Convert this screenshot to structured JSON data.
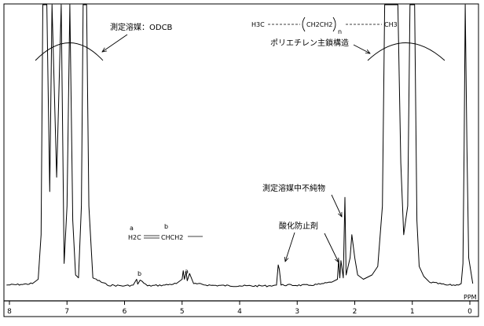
{
  "chart_data": {
    "type": "line",
    "title": "",
    "xlabel": "PPM",
    "ylabel": "",
    "x_reversed": true,
    "xlim": [
      8.1,
      -0.1
    ],
    "ylim": [
      0,
      1
    ],
    "x_ticks": [
      "8",
      "7",
      "6",
      "5",
      "4",
      "3",
      "2",
      "1",
      "0"
    ],
    "series": [
      {
        "values": [
          [
            8.05,
            0.025
          ],
          [
            7.8,
            0.027
          ],
          [
            7.6,
            0.03
          ],
          [
            7.5,
            0.045
          ],
          [
            7.45,
            0.2
          ],
          [
            7.42,
            1.0
          ],
          [
            7.35,
            1.0
          ],
          [
            7.3,
            0.35
          ],
          [
            7.26,
            1.0
          ],
          [
            7.18,
            0.4
          ],
          [
            7.1,
            1.0
          ],
          [
            7.05,
            0.1
          ],
          [
            7.0,
            0.3
          ],
          [
            6.95,
            1.0
          ],
          [
            6.9,
            0.25
          ],
          [
            6.85,
            0.06
          ],
          [
            6.8,
            0.05
          ],
          [
            6.75,
            0.3
          ],
          [
            6.72,
            1.0
          ],
          [
            6.66,
            1.0
          ],
          [
            6.62,
            0.3
          ],
          [
            6.55,
            0.05
          ],
          [
            6.3,
            0.025
          ],
          [
            6.0,
            0.022
          ],
          [
            5.85,
            0.025
          ],
          [
            5.79,
            0.045
          ],
          [
            5.77,
            0.028
          ],
          [
            5.73,
            0.042
          ],
          [
            5.6,
            0.022
          ],
          [
            5.3,
            0.025
          ],
          [
            5.1,
            0.03
          ],
          [
            5.0,
            0.045
          ],
          [
            4.98,
            0.075
          ],
          [
            4.96,
            0.045
          ],
          [
            4.93,
            0.07
          ],
          [
            4.91,
            0.04
          ],
          [
            4.87,
            0.065
          ],
          [
            4.8,
            0.03
          ],
          [
            4.5,
            0.024
          ],
          [
            4.0,
            0.022
          ],
          [
            3.5,
            0.022
          ],
          [
            3.36,
            0.025
          ],
          [
            3.33,
            0.095
          ],
          [
            3.31,
            0.08
          ],
          [
            3.28,
            0.025
          ],
          [
            2.8,
            0.024
          ],
          [
            2.6,
            0.028
          ],
          [
            2.4,
            0.035
          ],
          [
            2.3,
            0.045
          ],
          [
            2.28,
            0.115
          ],
          [
            2.26,
            0.05
          ],
          [
            2.24,
            0.11
          ],
          [
            2.2,
            0.05
          ],
          [
            2.17,
            0.33
          ],
          [
            2.15,
            0.06
          ],
          [
            2.08,
            0.12
          ],
          [
            2.05,
            0.2
          ],
          [
            2.0,
            0.12
          ],
          [
            1.95,
            0.06
          ],
          [
            1.85,
            0.045
          ],
          [
            1.7,
            0.06
          ],
          [
            1.6,
            0.09
          ],
          [
            1.52,
            0.3
          ],
          [
            1.48,
            1.0
          ],
          [
            1.25,
            1.0
          ],
          [
            1.2,
            0.45
          ],
          [
            1.15,
            0.2
          ],
          [
            1.08,
            0.3
          ],
          [
            1.04,
            1.0
          ],
          [
            0.96,
            1.0
          ],
          [
            0.92,
            0.25
          ],
          [
            0.88,
            0.09
          ],
          [
            0.8,
            0.055
          ],
          [
            0.7,
            0.035
          ],
          [
            0.4,
            0.025
          ],
          [
            0.2,
            0.025
          ],
          [
            0.15,
            0.03
          ],
          [
            0.12,
            0.1
          ],
          [
            0.1,
            0.5
          ],
          [
            0.08,
            1.0
          ],
          [
            0.05,
            0.5
          ],
          [
            0.02,
            0.12
          ],
          [
            -0.05,
            0.03
          ]
        ]
      }
    ],
    "annotations": {
      "solvent_label": "測定溶媒：ODCB",
      "polymer_formula": {
        "left_group": "H3C",
        "repeat_unit": "CH2CH2",
        "subscript": "n",
        "right_group": "CH3"
      },
      "polymer_label": "ポリエチレン主鎖構造",
      "vinyl_structure": {
        "label_a": "a",
        "label_b": "b",
        "left_group": "H2C",
        "right_group": "CHCH2"
      },
      "impurity_label": "測定溶媒中不純物",
      "antioxidant_label": "酸化防止剤",
      "peak_a": "a",
      "peak_b": "b"
    }
  }
}
